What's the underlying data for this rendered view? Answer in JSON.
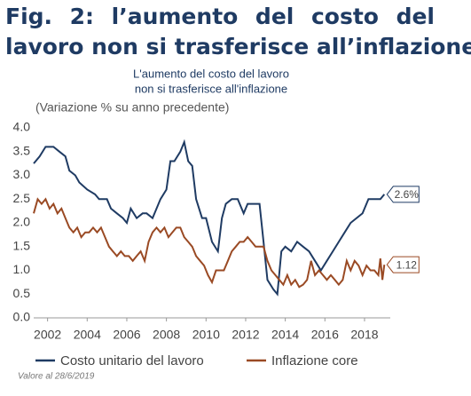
{
  "chart_data": {
    "type": "line",
    "figure_title": [
      "Fig. 2: l’aumento del costo del",
      "lavoro non si trasferisce all’inflazione"
    ],
    "title": [
      "L'aumento del costo del lavoro",
      "non si trasferisce all'inflazione"
    ],
    "ylabel": "(Variazione % su anno precedente)",
    "note": "Valore al 28/6/2019",
    "xlim": [
      2001.3,
      2019.3
    ],
    "xticks": [
      2002,
      2004,
      2006,
      2008,
      2010,
      2012,
      2014,
      2016,
      2018
    ],
    "ylim": [
      0,
      4
    ],
    "yticks": [
      {
        "value": 0,
        "label": "0.0"
      },
      0.5,
      {
        "value": 1,
        "label": "1.0"
      },
      1.5,
      {
        "value": 2,
        "label": "2.0"
      },
      2.5,
      {
        "value": 3,
        "label": "3.0"
      },
      3.5,
      {
        "value": 4,
        "label": "4.0"
      }
    ],
    "grid": false,
    "legend": "bottom",
    "series": [
      {
        "name": "Costo unitario del lavoro",
        "color": "#1f3b63",
        "end_label": "2.6%",
        "x": [
          2001.3,
          2001.6,
          2001.9,
          2002.3,
          2002.6,
          2002.9,
          2003.1,
          2003.4,
          2003.6,
          2004.0,
          2004.4,
          2004.6,
          2005.0,
          2005.2,
          2005.5,
          2005.8,
          2006.0,
          2006.2,
          2006.5,
          2006.8,
          2007.0,
          2007.3,
          2007.5,
          2007.7,
          2008.0,
          2008.2,
          2008.4,
          2008.7,
          2008.9,
          2009.1,
          2009.3,
          2009.5,
          2009.8,
          2010.0,
          2010.3,
          2010.6,
          2010.8,
          2011.0,
          2011.3,
          2011.6,
          2011.9,
          2012.1,
          2012.4,
          2012.7,
          2012.9,
          2013.1,
          2013.4,
          2013.6,
          2013.8,
          2014.0,
          2014.3,
          2014.6,
          2014.9,
          2015.2,
          2015.5,
          2015.8,
          2016.1,
          2016.4,
          2016.7,
          2017.0,
          2017.3,
          2017.6,
          2017.9,
          2018.2,
          2018.5,
          2018.8,
          2019.0
        ],
        "values": [
          3.25,
          3.4,
          3.6,
          3.6,
          3.5,
          3.4,
          3.1,
          3.0,
          2.85,
          2.7,
          2.6,
          2.5,
          2.5,
          2.3,
          2.2,
          2.1,
          2.0,
          2.3,
          2.1,
          2.2,
          2.2,
          2.1,
          2.3,
          2.5,
          2.7,
          3.3,
          3.3,
          3.5,
          3.7,
          3.3,
          3.2,
          2.5,
          2.1,
          2.1,
          1.6,
          1.4,
          2.1,
          2.4,
          2.5,
          2.5,
          2.2,
          2.4,
          2.4,
          2.4,
          1.6,
          0.8,
          0.6,
          0.5,
          1.4,
          1.5,
          1.4,
          1.6,
          1.5,
          1.4,
          1.2,
          1.0,
          1.2,
          1.4,
          1.6,
          1.8,
          2.0,
          2.1,
          2.2,
          2.5,
          2.5,
          2.5,
          2.6
        ]
      },
      {
        "name": "Inflazione core",
        "color": "#9a4a24",
        "end_label": "1.12",
        "x": [
          2001.3,
          2001.5,
          2001.7,
          2001.9,
          2002.1,
          2002.3,
          2002.5,
          2002.7,
          2002.9,
          2003.1,
          2003.3,
          2003.5,
          2003.7,
          2003.9,
          2004.1,
          2004.3,
          2004.5,
          2004.7,
          2004.9,
          2005.1,
          2005.3,
          2005.5,
          2005.7,
          2005.9,
          2006.1,
          2006.3,
          2006.5,
          2006.7,
          2006.9,
          2007.1,
          2007.3,
          2007.5,
          2007.7,
          2007.9,
          2008.1,
          2008.3,
          2008.5,
          2008.7,
          2008.9,
          2009.1,
          2009.3,
          2009.5,
          2009.7,
          2009.9,
          2010.1,
          2010.3,
          2010.5,
          2010.7,
          2010.9,
          2011.1,
          2011.3,
          2011.5,
          2011.7,
          2011.9,
          2012.1,
          2012.3,
          2012.5,
          2012.7,
          2012.9,
          2013.1,
          2013.3,
          2013.5,
          2013.7,
          2013.9,
          2014.1,
          2014.3,
          2014.5,
          2014.7,
          2014.9,
          2015.1,
          2015.3,
          2015.5,
          2015.7,
          2015.9,
          2016.1,
          2016.3,
          2016.5,
          2016.7,
          2016.9,
          2017.1,
          2017.3,
          2017.5,
          2017.7,
          2017.9,
          2018.1,
          2018.3,
          2018.5,
          2018.7,
          2018.8,
          2018.9,
          2019.0
        ],
        "values": [
          2.2,
          2.5,
          2.4,
          2.5,
          2.3,
          2.4,
          2.2,
          2.3,
          2.1,
          1.9,
          1.8,
          1.9,
          1.7,
          1.8,
          1.8,
          1.9,
          1.8,
          1.9,
          1.7,
          1.5,
          1.4,
          1.3,
          1.4,
          1.3,
          1.3,
          1.2,
          1.3,
          1.4,
          1.2,
          1.6,
          1.8,
          1.9,
          1.8,
          1.9,
          1.7,
          1.8,
          1.9,
          1.9,
          1.7,
          1.6,
          1.5,
          1.3,
          1.2,
          1.1,
          0.9,
          0.75,
          1.0,
          1.0,
          1.0,
          1.2,
          1.4,
          1.5,
          1.6,
          1.6,
          1.7,
          1.6,
          1.5,
          1.5,
          1.5,
          1.2,
          1.0,
          0.9,
          0.8,
          0.7,
          0.9,
          0.7,
          0.8,
          0.65,
          0.7,
          0.8,
          1.2,
          0.9,
          1.0,
          0.9,
          0.8,
          0.9,
          0.8,
          0.7,
          0.8,
          1.2,
          1.0,
          1.2,
          1.1,
          0.9,
          1.1,
          1.0,
          1.0,
          0.9,
          1.25,
          0.8,
          1.12
        ]
      }
    ]
  }
}
